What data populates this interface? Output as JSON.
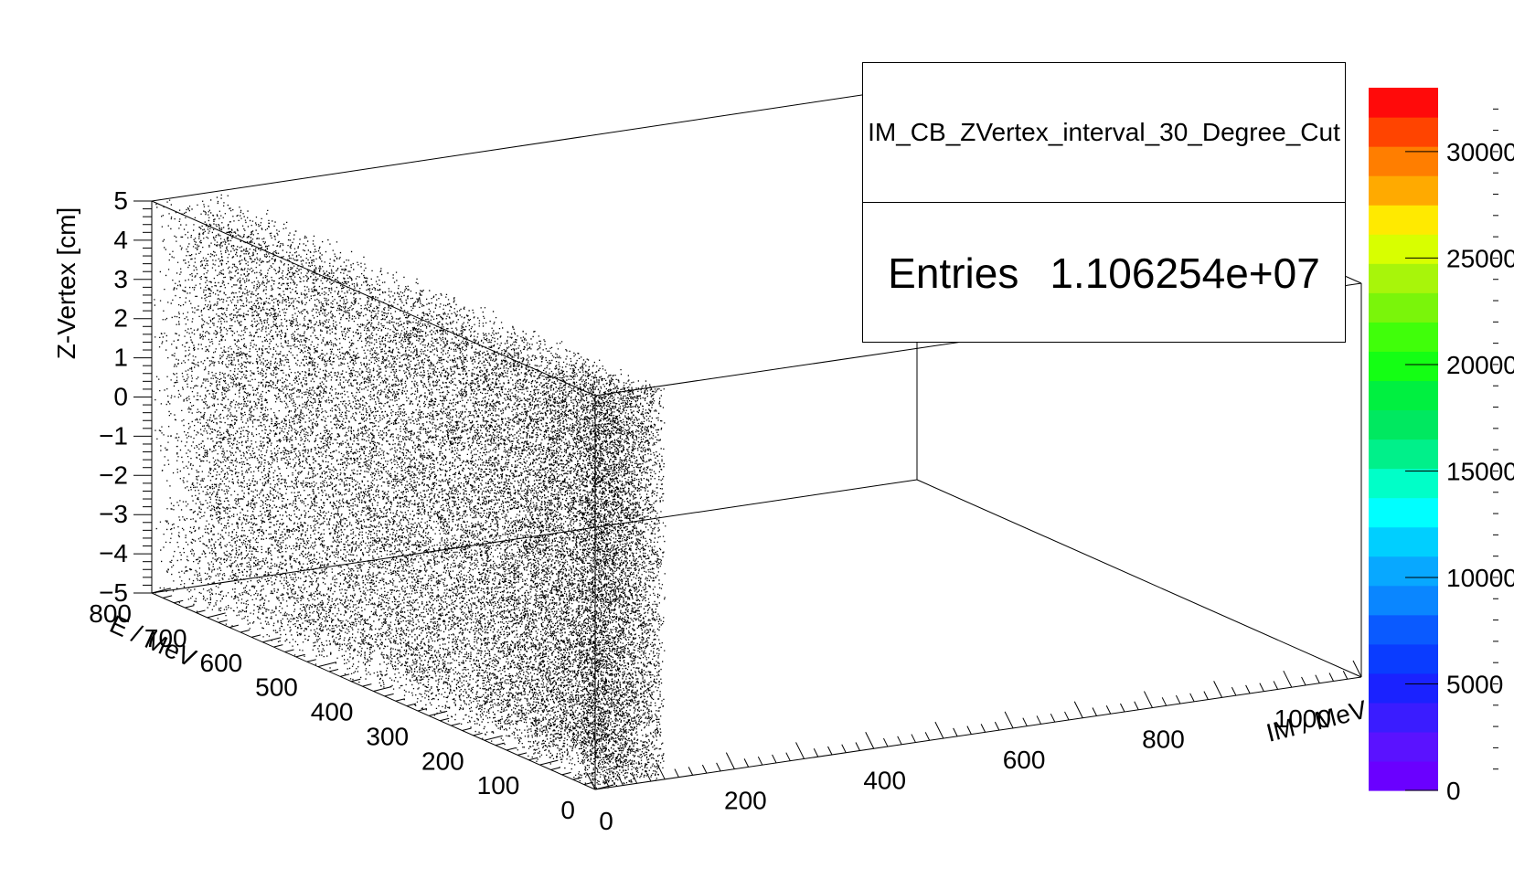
{
  "chart_data": {
    "type": "scatter",
    "subtype": "3d-scatter",
    "xlabel": "IM / MeV",
    "ylabel": "E / MeV",
    "zlabel": "Z-Vertex [cm]",
    "xlim": [
      0,
      1100
    ],
    "ylim": [
      0,
      800
    ],
    "zlim": [
      -5,
      5
    ],
    "x_ticks": [
      "0",
      "200",
      "400",
      "600",
      "800",
      "1000"
    ],
    "y_ticks": [
      "0",
      "100",
      "200",
      "300",
      "400",
      "500",
      "600",
      "700",
      "800"
    ],
    "z_ticks": [
      "5",
      "4",
      "3",
      "2",
      "1",
      "0",
      "−1",
      "−2",
      "−3",
      "−4",
      "−5"
    ],
    "point_cloud": {
      "im_range": [
        0,
        100
      ],
      "e_range": [
        0,
        800
      ],
      "z_range": [
        -5,
        5
      ],
      "density": "highest at low E, falling toward high E"
    },
    "colorbar": {
      "min": 0,
      "max": 33000,
      "tick_labels": [
        "0",
        "5000",
        "10000",
        "15000",
        "20000",
        "25000",
        "30000"
      ],
      "palette": [
        "#6a00ff",
        "#5a12ff",
        "#3a1cff",
        "#1a22ff",
        "#0a3cff",
        "#0a5aff",
        "#0a86ff",
        "#08a8ff",
        "#00cfff",
        "#00ffff",
        "#00ffc8",
        "#00f08a",
        "#00e860",
        "#00f040",
        "#14ff14",
        "#40ff0a",
        "#7af50a",
        "#a8f50a",
        "#d8ff00",
        "#ffea00",
        "#ffaa00",
        "#ff7e00",
        "#ff4400",
        "#ff0a0a"
      ]
    },
    "stats": {
      "title": "IM_CB_ZVertex_interval_30_Degree_Cut",
      "entries_label": "Entries",
      "entries_value": "1.106254e+07"
    }
  }
}
